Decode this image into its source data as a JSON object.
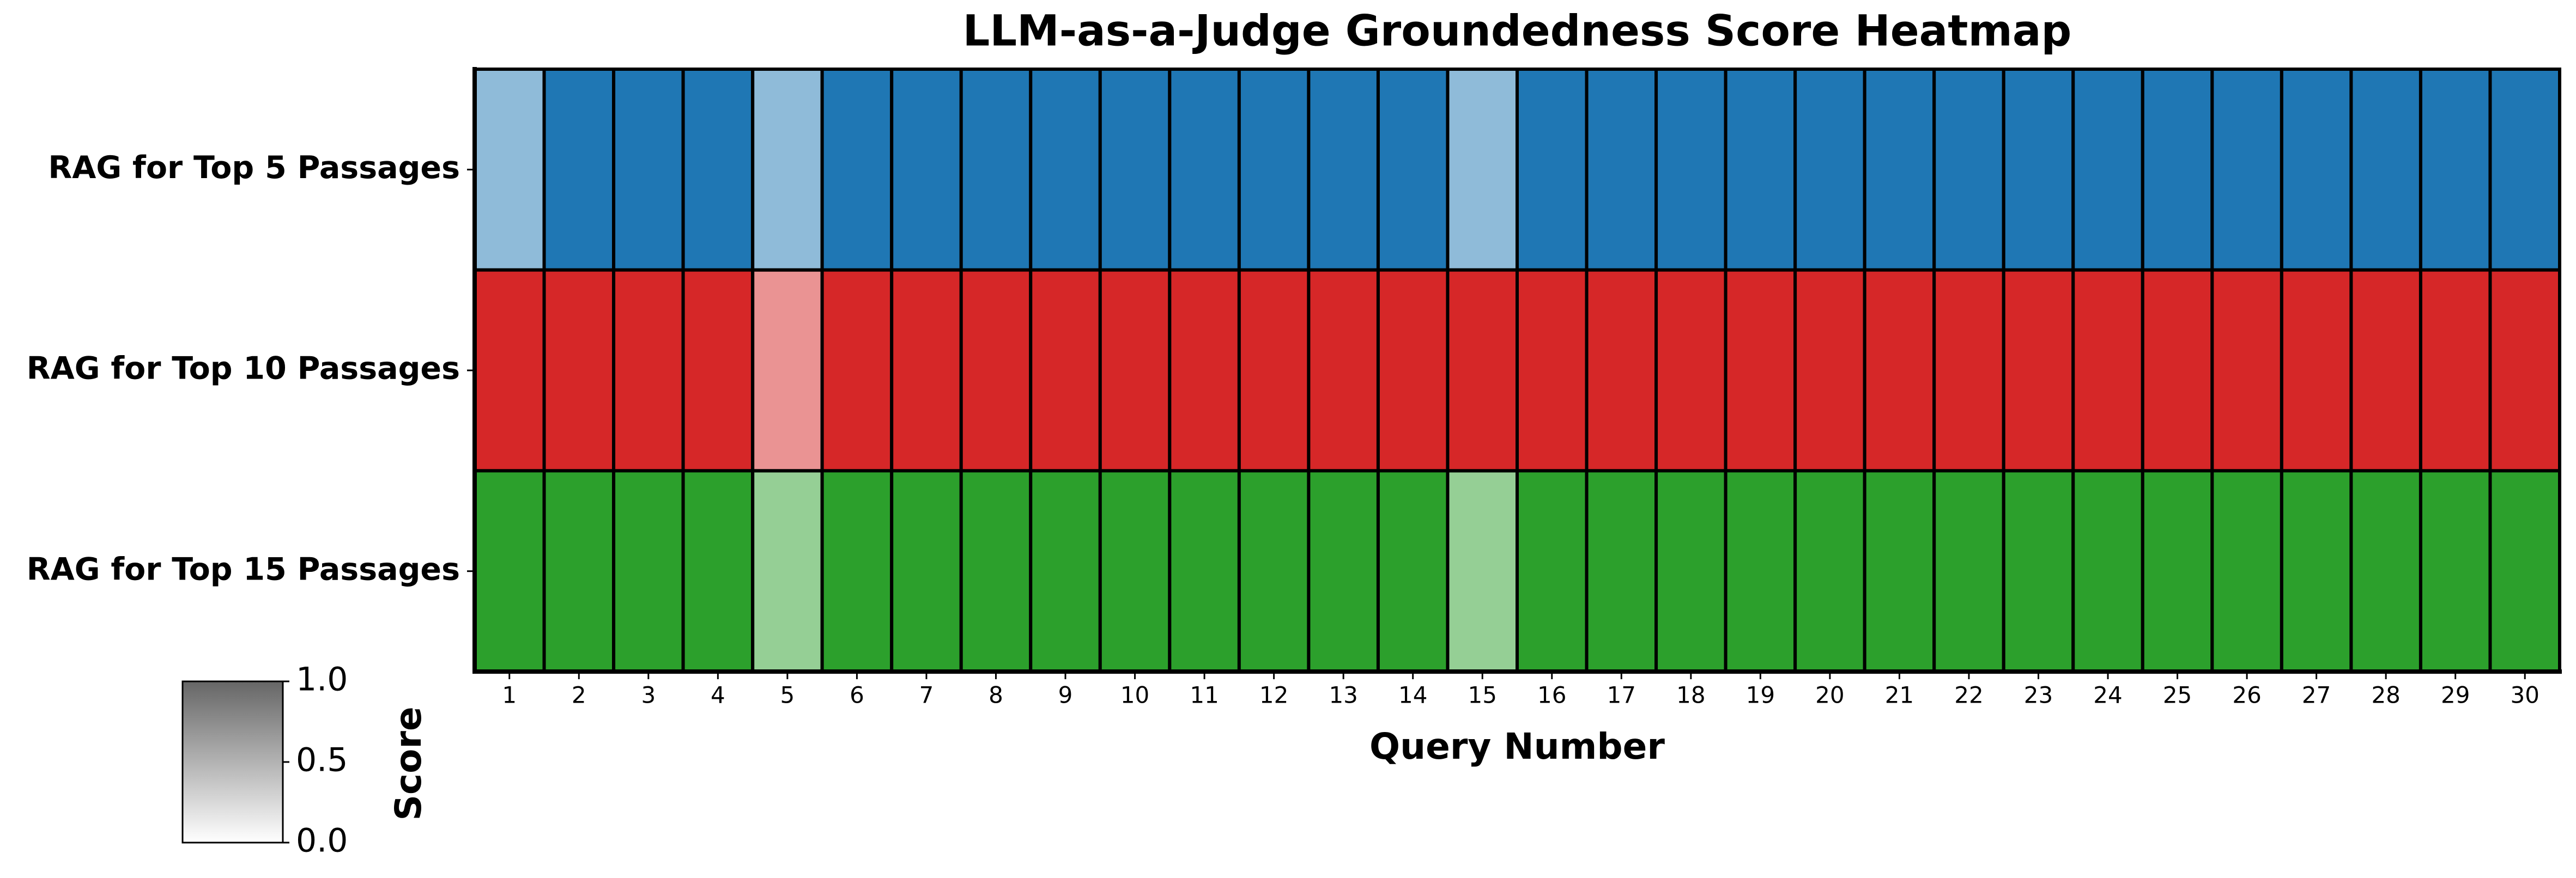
{
  "chart_data": {
    "type": "heatmap",
    "title": "LLM-as-a-Judge Groundedness Score Heatmap",
    "xlabel": "Query Number",
    "categories": [
      "1",
      "2",
      "3",
      "4",
      "5",
      "6",
      "7",
      "8",
      "9",
      "10",
      "11",
      "12",
      "13",
      "14",
      "15",
      "16",
      "17",
      "18",
      "19",
      "20",
      "21",
      "22",
      "23",
      "24",
      "25",
      "26",
      "27",
      "28",
      "29",
      "30"
    ],
    "series": [
      {
        "name": "RAG for Top 5 Passages",
        "color": "#1f77b4",
        "values": [
          0.5,
          1,
          1,
          1,
          0.5,
          1,
          1,
          1,
          1,
          1,
          1,
          1,
          1,
          1,
          0.5,
          1,
          1,
          1,
          1,
          1,
          1,
          1,
          1,
          1,
          1,
          1,
          1,
          1,
          1,
          1
        ]
      },
      {
        "name": "RAG for Top 10 Passages",
        "color": "#d62728",
        "values": [
          1,
          1,
          1,
          1,
          0.5,
          1,
          1,
          1,
          1,
          1,
          1,
          1,
          1,
          1,
          1,
          1,
          1,
          1,
          1,
          1,
          1,
          1,
          1,
          1,
          1,
          1,
          1,
          1,
          1,
          1
        ]
      },
      {
        "name": "RAG for Top 15 Passages",
        "color": "#2ca02c",
        "values": [
          1,
          1,
          1,
          1,
          0.5,
          1,
          1,
          1,
          1,
          1,
          1,
          1,
          1,
          1,
          0.5,
          1,
          1,
          1,
          1,
          1,
          1,
          1,
          1,
          1,
          1,
          1,
          1,
          1,
          1,
          1
        ]
      }
    ],
    "colorbar": {
      "label": "Score",
      "color": "#666666",
      "lim": [
        0,
        1
      ],
      "ticks": [
        {
          "value": 0,
          "label": "0.0"
        },
        {
          "value": 0.5,
          "label": "0.5"
        },
        {
          "value": 1,
          "label": "1.0"
        }
      ]
    }
  }
}
